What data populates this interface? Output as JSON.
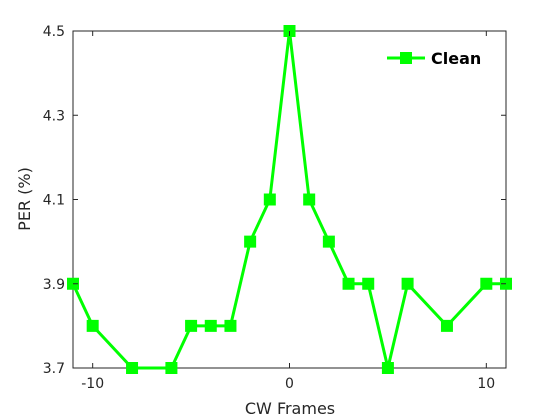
{
  "chart_data": {
    "type": "line",
    "xlabel": "CW Frames",
    "ylabel": "PER (%)",
    "xlim": [
      -11,
      11
    ],
    "ylim": [
      3.7,
      4.5
    ],
    "xticks": [
      -10,
      0,
      10
    ],
    "yticks": [
      3.7,
      3.9,
      4.1,
      4.3,
      4.5
    ],
    "grid": false,
    "legend_position": "top-right",
    "series": [
      {
        "name": "Clean",
        "color": "#00ff00",
        "marker": "square",
        "x": [
          -11,
          -10,
          -8,
          -6,
          -5,
          -4,
          -3,
          -2,
          -1,
          0,
          1,
          2,
          3,
          4,
          5,
          6,
          8,
          10,
          11
        ],
        "y": [
          3.9,
          3.8,
          3.7,
          3.7,
          3.8,
          3.8,
          3.8,
          4.0,
          4.1,
          4.5,
          4.1,
          4.0,
          3.9,
          3.9,
          3.7,
          3.9,
          3.8,
          3.9,
          3.9
        ]
      }
    ]
  }
}
